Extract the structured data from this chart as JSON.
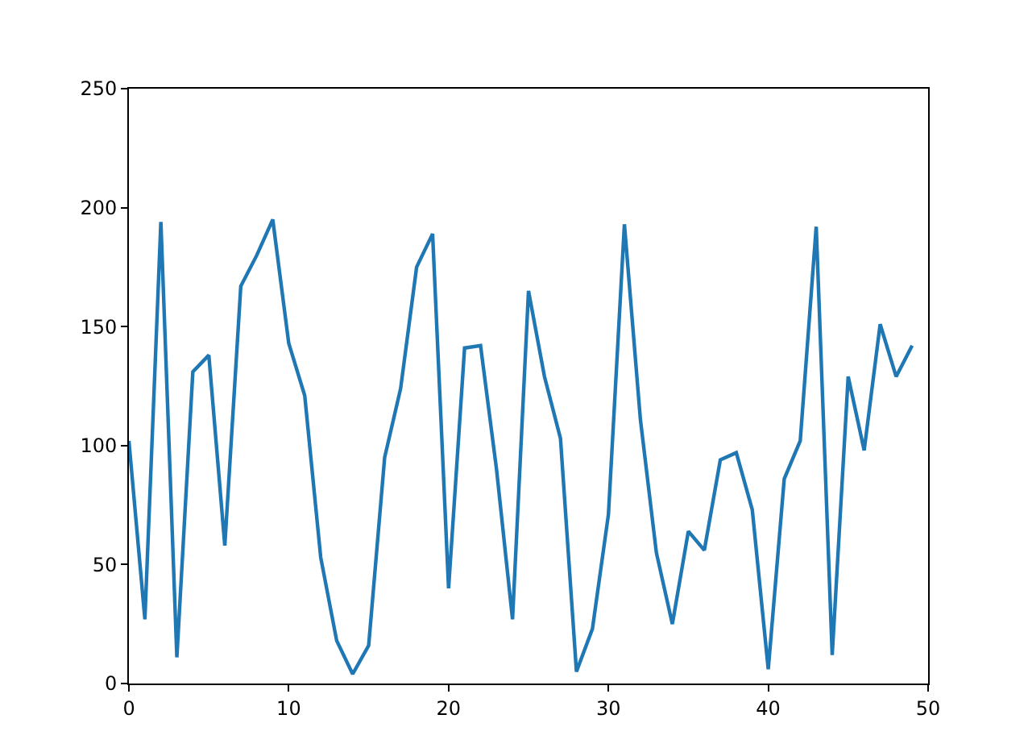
{
  "chart_data": {
    "type": "line",
    "x": [
      0,
      1,
      2,
      3,
      4,
      5,
      6,
      7,
      8,
      9,
      10,
      11,
      12,
      13,
      14,
      15,
      16,
      17,
      18,
      19,
      20,
      21,
      22,
      23,
      24,
      25,
      26,
      27,
      28,
      29,
      30,
      31,
      32,
      33,
      34,
      35,
      36,
      37,
      38,
      39,
      40,
      41,
      42,
      43,
      44,
      45,
      46,
      47,
      48,
      49
    ],
    "series": [
      {
        "color": "#1f77b4",
        "values": [
          102,
          27,
          194,
          11,
          131,
          138,
          58,
          167,
          180,
          195,
          143,
          121,
          53,
          18,
          4,
          16,
          95,
          124,
          175,
          189,
          40,
          141,
          142,
          90,
          27,
          165,
          129,
          103,
          5,
          23,
          71,
          193,
          111,
          55,
          25,
          64,
          56,
          94,
          97,
          73,
          6,
          86,
          102,
          192,
          12,
          129,
          98,
          151,
          129,
          142
        ]
      }
    ],
    "xlim": [
      0,
      50
    ],
    "xticks": [
      0,
      10,
      20,
      30,
      40,
      50
    ],
    "ylim": [
      0,
      250
    ],
    "yticks": [
      0,
      50,
      100,
      150,
      200,
      250
    ],
    "grid": false,
    "legend": false,
    "marker": "none",
    "line_style": "solid"
  }
}
